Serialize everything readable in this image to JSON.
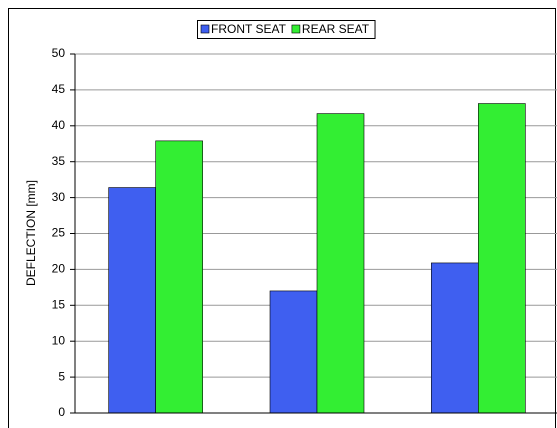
{
  "chart_data": {
    "type": "bar",
    "y_label": "DEFLECTION [mm]",
    "categories": [
      null,
      null,
      null
    ],
    "series": [
      {
        "name": "FRONT SEAT",
        "color": "#3f5ff0",
        "values": [
          31.4,
          17.0,
          20.9
        ]
      },
      {
        "name": "REAR SEAT",
        "color": "#33ee33",
        "values": [
          37.9,
          41.7,
          43.1
        ]
      }
    ],
    "ylim": [
      0,
      50
    ],
    "yticks": [
      0,
      5,
      10,
      15,
      20,
      25,
      30,
      35,
      40,
      45,
      50
    ],
    "grid": true,
    "legend": "top"
  }
}
